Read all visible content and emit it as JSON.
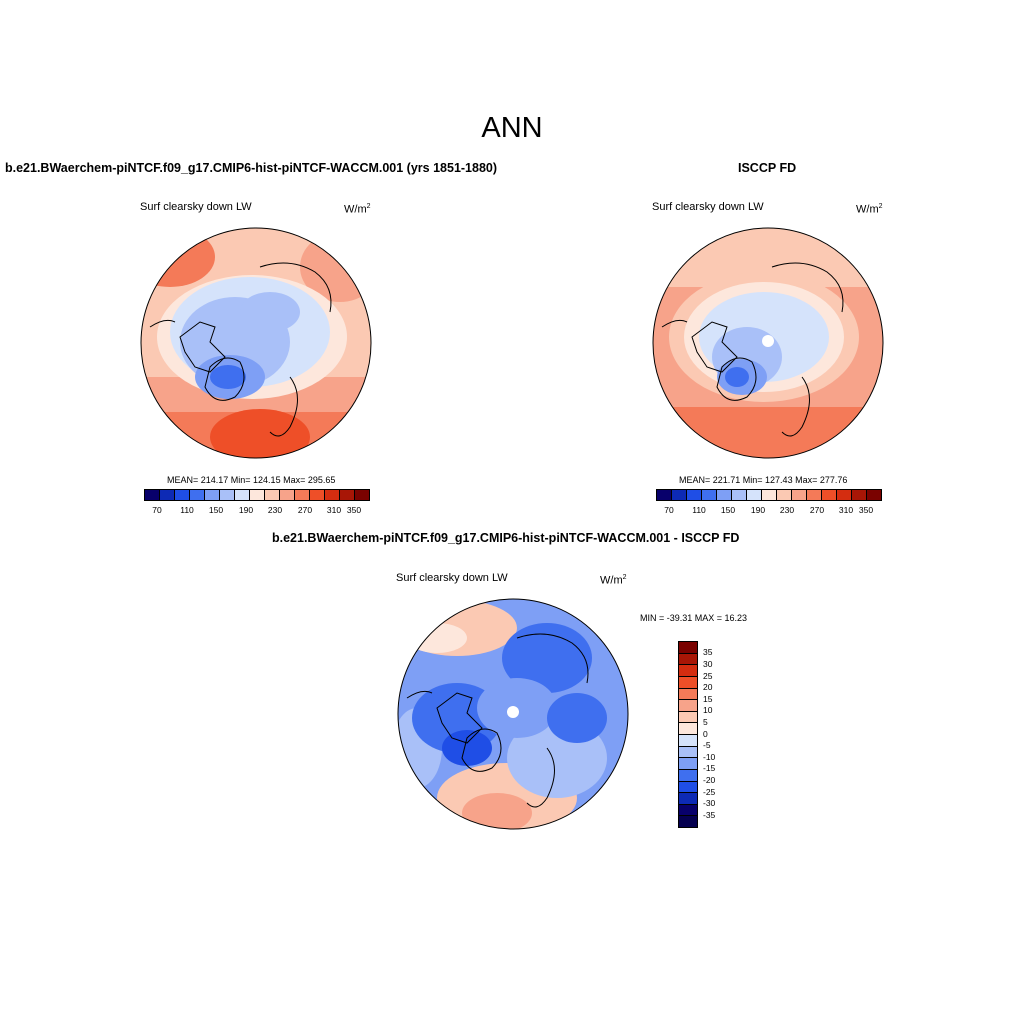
{
  "figure": {
    "title": "ANN"
  },
  "panels": [
    {
      "title": "b.e21.BWaerchem-piNTCF.f09_g17.CMIP6-hist-piNTCF-WACCM.001 (yrs 1851-1880)",
      "field": "Surf clearsky down LW",
      "units_base": "W/m",
      "units_exp": "2",
      "stats": "MEAN= 214.17  Min= 124.15  Max= 295.65",
      "colorbar_ticks": [
        "70",
        "110",
        "150",
        "190",
        "230",
        "270",
        "310",
        "350"
      ]
    },
    {
      "title": "ISCCP FD",
      "field": "Surf clearsky down LW",
      "units_base": "W/m",
      "units_exp": "2",
      "stats": "MEAN= 221.71  Min= 127.43  Max= 277.76",
      "colorbar_ticks": [
        "70",
        "110",
        "150",
        "190",
        "230",
        "270",
        "310",
        "350"
      ]
    },
    {
      "title": "b.e21.BWaerchem-piNTCF.f09_g17.CMIP6-hist-piNTCF-WACCM.001 - ISCCP FD",
      "field": "Surf clearsky down LW",
      "units_base": "W/m",
      "units_exp": "2",
      "stats": "MIN = -39.31 MAX =  16.23",
      "colorbar_ticks": [
        "35",
        "30",
        "25",
        "20",
        "15",
        "10",
        "5",
        "0",
        "-5",
        "-10",
        "-15",
        "-20",
        "-25",
        "-30",
        "-35"
      ]
    }
  ],
  "colors": {
    "abs_scale": [
      "#08006b",
      "#0d2ab5",
      "#1f4ee6",
      "#3f6fef",
      "#7e9ff5",
      "#a9c0f8",
      "#d5e3fb",
      "#fde7dc",
      "#fbc9b3",
      "#f7a38a",
      "#f47a58",
      "#ee4f28",
      "#d42d10",
      "#a81606",
      "#7a0200"
    ],
    "diff_scale": [
      "#7a0200",
      "#a81606",
      "#d42d10",
      "#ee4f28",
      "#f47a58",
      "#f7a38a",
      "#fbc9b3",
      "#fde7dc",
      "#d5e3fb",
      "#a9c0f8",
      "#7e9ff5",
      "#3f6fef",
      "#1f4ee6",
      "#0d2ab5",
      "#08006b",
      "#050050"
    ]
  }
}
